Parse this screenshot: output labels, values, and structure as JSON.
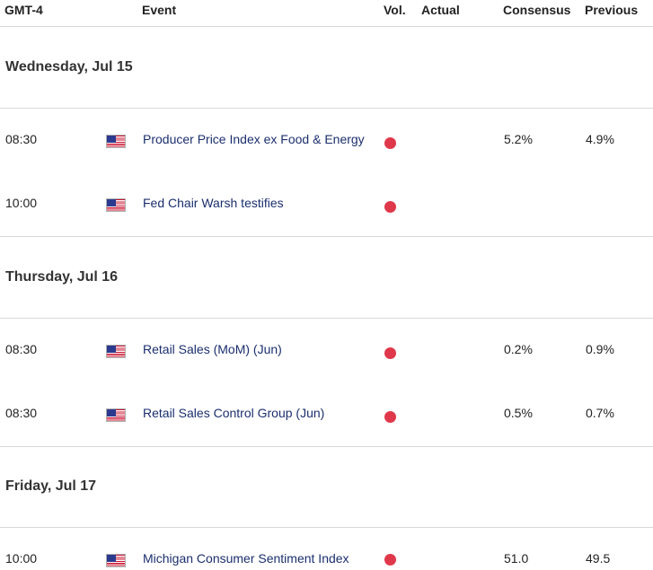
{
  "header": {
    "timezone": "GMT-4",
    "event": "Event",
    "vol": "Vol.",
    "actual": "Actual",
    "consensus": "Consensus",
    "previous": "Previous"
  },
  "colors": {
    "high_impact": "#e0384b",
    "event_link": "#1b2f6e"
  },
  "days": [
    {
      "label": "Wednesday, Jul 15",
      "events": [
        {
          "time": "08:30",
          "flag": "us-flag-icon",
          "event": "Producer Price Index ex Food & Energy",
          "impact": "high",
          "actual": "",
          "consensus": "5.2%",
          "previous": "4.9%"
        },
        {
          "time": "10:00",
          "flag": "us-flag-icon",
          "event": "Fed Chair Warsh testifies",
          "impact": "high",
          "actual": "",
          "consensus": "",
          "previous": ""
        }
      ]
    },
    {
      "label": "Thursday, Jul 16",
      "events": [
        {
          "time": "08:30",
          "flag": "us-flag-icon",
          "event": "Retail Sales (MoM) (Jun)",
          "impact": "high",
          "actual": "",
          "consensus": "0.2%",
          "previous": "0.9%"
        },
        {
          "time": "08:30",
          "flag": "us-flag-icon",
          "event": "Retail Sales Control Group (Jun)",
          "impact": "high",
          "actual": "",
          "consensus": "0.5%",
          "previous": "0.7%"
        }
      ]
    },
    {
      "label": "Friday, Jul 17",
      "events": [
        {
          "time": "10:00",
          "flag": "us-flag-icon",
          "event": "Michigan Consumer Sentiment Index",
          "impact": "high",
          "actual": "",
          "consensus": "51.0",
          "previous": "49.5"
        }
      ]
    }
  ]
}
